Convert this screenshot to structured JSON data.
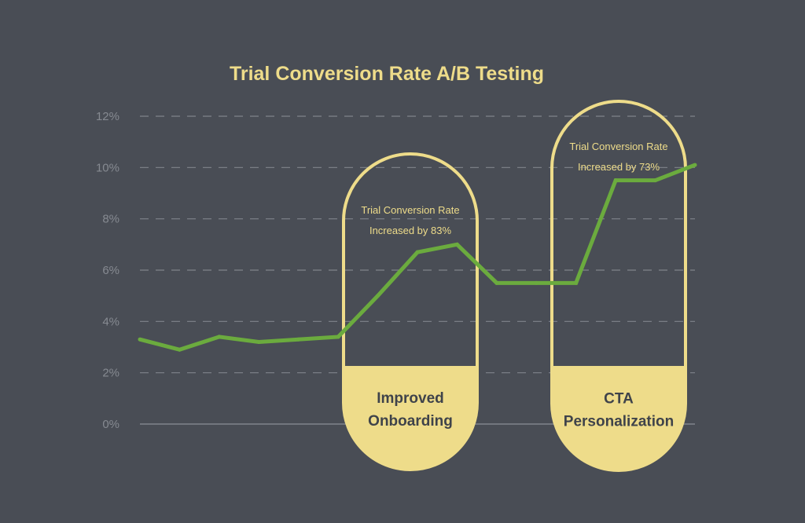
{
  "chart_data": {
    "type": "line",
    "title": "Trial Conversion Rate A/B Testing",
    "ylim": [
      0,
      12
    ],
    "yticks": [
      "0%",
      "2%",
      "4%",
      "6%",
      "8%",
      "10%",
      "12%"
    ],
    "grid": true,
    "series": [
      {
        "values": [
          3.3,
          2.9,
          3.4,
          3.2,
          3.3,
          3.4,
          5.0,
          6.7,
          7.0,
          5.5,
          5.5,
          5.5,
          9.5,
          9.5,
          10.1
        ]
      }
    ],
    "annotations": [
      {
        "label_lines": [
          "Trial Conversion Rate",
          "Increased by 83%"
        ],
        "caption_lines": [
          "Improved",
          "Onboarding"
        ]
      },
      {
        "label_lines": [
          "Trial Conversion Rate",
          "Increased by 73%"
        ],
        "caption_lines": [
          "CTA",
          "Personalization"
        ]
      }
    ]
  },
  "colors": {
    "background": "#494d55",
    "line": "#6bab3e",
    "accent": "#eedc8a",
    "grid": "#80848b",
    "tick_text": "#868a91",
    "caption_text": "#3f434a"
  }
}
